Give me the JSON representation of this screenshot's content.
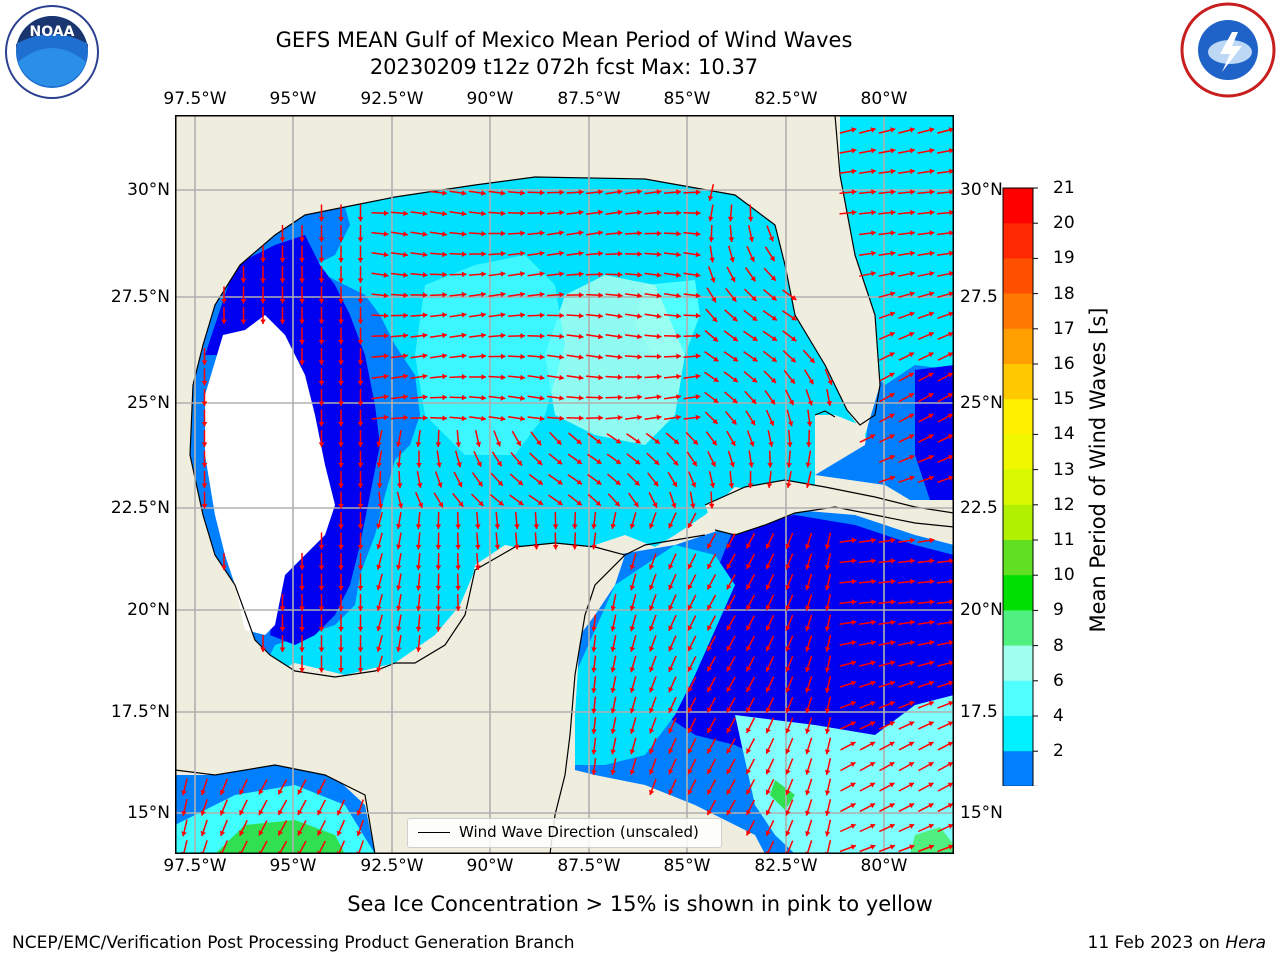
{
  "title": {
    "line1": "GEFS MEAN Gulf of Mexico Mean Period of Wind Waves",
    "line2": "20230209 t12z 072h fcst   Max: 10.37"
  },
  "map": {
    "lon_ticks": [
      "97.5°W",
      "95°W",
      "92.5°W",
      "90°W",
      "87.5°W",
      "85°W",
      "82.5°W",
      "80°W"
    ],
    "lat_ticks": [
      "30°N",
      "27.5°N",
      "25°N",
      "22.5°N",
      "20°N",
      "17.5°N",
      "15°N"
    ],
    "lat_ticks_right": [
      "30°N",
      "27.5",
      "25°N",
      "22.5",
      "20°N",
      "17.5",
      "15°N"
    ],
    "land_color": "#efedde",
    "grid": true
  },
  "colorbar": {
    "label": "Mean Period of Wind Waves [s]",
    "ticks": [
      "21",
      "20",
      "19",
      "18",
      "17",
      "16",
      "15",
      "14",
      "13",
      "12",
      "11",
      "10",
      "9",
      "8",
      "6",
      "4",
      "2"
    ],
    "colors": [
      "#ff0000",
      "#ff2800",
      "#ff5000",
      "#ff7800",
      "#ffa000",
      "#ffc800",
      "#fff000",
      "#f0f800",
      "#d8f800",
      "#b0f000",
      "#60e020",
      "#00e000",
      "#50f080",
      "#a0fff0",
      "#50ffff",
      "#00f0ff",
      "#0080ff",
      "#0000ff"
    ]
  },
  "legend": {
    "label": "Wind Wave Direction (unscaled)"
  },
  "note": "Sea Ice Concentration > 15% is shown in pink to yellow",
  "footer": {
    "left": "NCEP/EMC/Verification Post Processing Product Generation Branch",
    "right_date": "11 Feb 2023 on ",
    "right_host": "Hera"
  },
  "logos": {
    "left": "NOAA",
    "right": "NATIONAL WEATHER SERVICE"
  }
}
